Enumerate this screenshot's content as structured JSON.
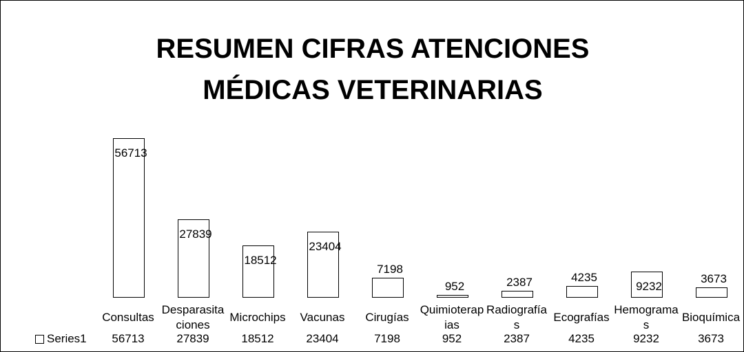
{
  "chart_data": {
    "type": "bar",
    "title": "RESUMEN CIFRAS ATENCIONES MÉDICAS VETERINARIAS",
    "categories": [
      "Consultas",
      "Desparasitaciones",
      "Microchips",
      "Vacunas",
      "Cirugías",
      "Quimioterapias",
      "Radiografías",
      "Ecografías",
      "Hemogramas",
      "Bioquímica"
    ],
    "series": [
      {
        "name": "Series1",
        "color": "#ffffff",
        "values": [
          56713,
          27839,
          18512,
          23404,
          7198,
          952,
          2387,
          4235,
          9232,
          3673
        ]
      }
    ]
  }
}
